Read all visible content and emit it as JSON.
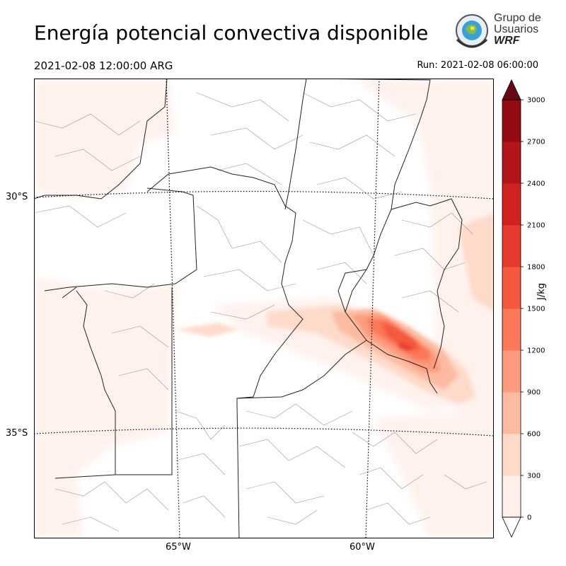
{
  "title": "Energía potencial convectiva disponible",
  "valid_time": "2021-02-08 12:00:00 ARG",
  "run_time": "Run: 2021-02-08 06:00:00",
  "logo": {
    "line1": "Grupo de",
    "line2": "Usuarios",
    "line3": "WRF"
  },
  "latitude_labels": [
    "30°S",
    "35°S"
  ],
  "longitude_labels": [
    "65°W",
    "60°W"
  ],
  "colorbar": {
    "label": "J/kg",
    "ticks": [
      "0",
      "300",
      "600",
      "900",
      "1200",
      "1500",
      "1800",
      "2100",
      "2400",
      "2700",
      "3000"
    ],
    "colors": [
      "#fff0eb",
      "#fedaca",
      "#fcbba1",
      "#fc9b7e",
      "#fb7858",
      "#f4583e",
      "#e73a2f",
      "#d02220",
      "#b31419",
      "#920b13",
      "#670812"
    ],
    "extend": "both"
  }
}
